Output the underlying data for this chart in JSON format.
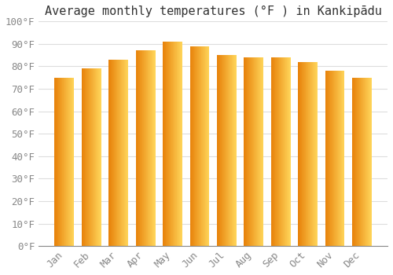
{
  "title": "Average monthly temperatures (°F ) in Kankipādu",
  "months": [
    "Jan",
    "Feb",
    "Mar",
    "Apr",
    "May",
    "Jun",
    "Jul",
    "Aug",
    "Sep",
    "Oct",
    "Nov",
    "Dec"
  ],
  "values": [
    75,
    79,
    83,
    87,
    91,
    89,
    85,
    84,
    84,
    82,
    78,
    75
  ],
  "bar_color_left": "#E8820A",
  "bar_color_right": "#FFD55A",
  "ylim": [
    0,
    100
  ],
  "yticks": [
    0,
    10,
    20,
    30,
    40,
    50,
    60,
    70,
    80,
    90,
    100
  ],
  "ytick_labels": [
    "0°F",
    "10°F",
    "20°F",
    "30°F",
    "40°F",
    "50°F",
    "60°F",
    "70°F",
    "80°F",
    "90°F",
    "100°F"
  ],
  "background_color": "#FFFFFF",
  "grid_color": "#DDDDDD",
  "title_fontsize": 11,
  "tick_fontsize": 9,
  "font_color": "#888888",
  "n_gradient_strips": 40,
  "bar_width": 0.72
}
